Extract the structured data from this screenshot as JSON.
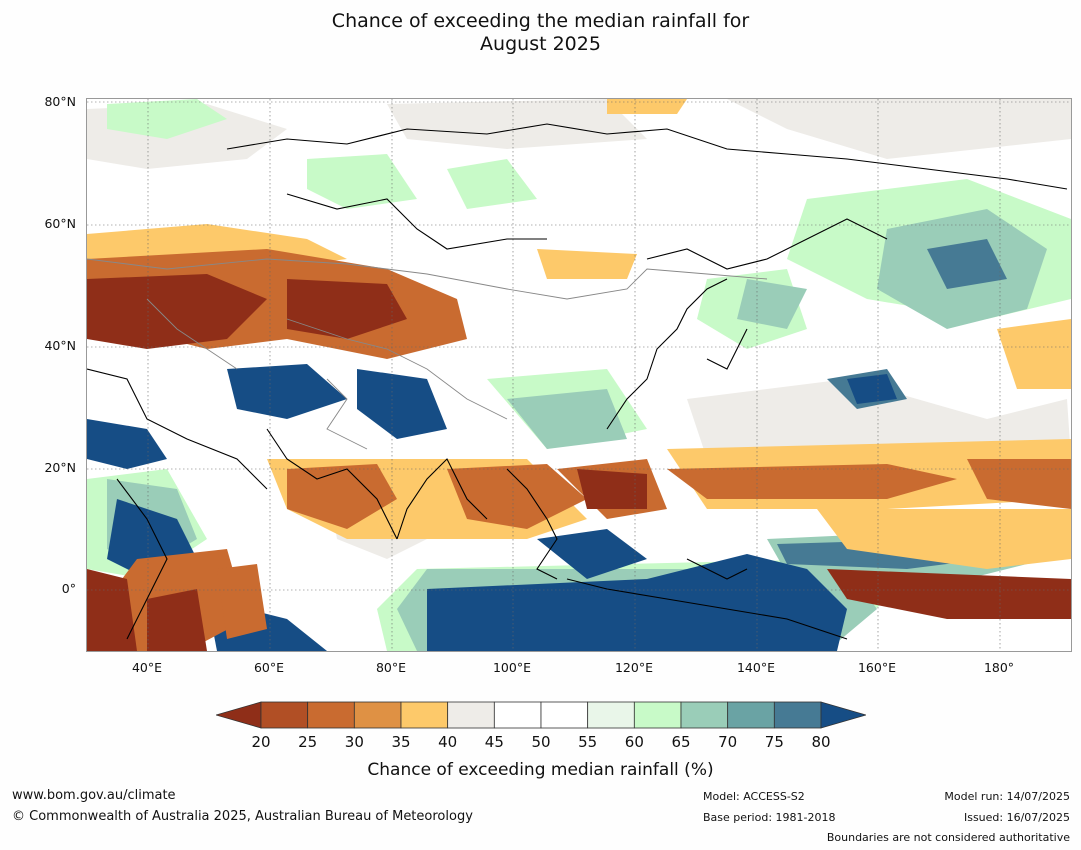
{
  "title_line1": "Chance of exceeding the median rainfall for",
  "title_line2": "August 2025",
  "map": {
    "lat_ticks": [
      {
        "label": "80°N",
        "value": 80
      },
      {
        "label": "60°N",
        "value": 60
      },
      {
        "label": "40°N",
        "value": 40
      },
      {
        "label": "20°N",
        "value": 20
      },
      {
        "label": "0°",
        "value": 0
      }
    ],
    "lon_ticks": [
      {
        "label": "40°E",
        "value": 40
      },
      {
        "label": "60°E",
        "value": 60
      },
      {
        "label": "80°E",
        "value": 80
      },
      {
        "label": "100°E",
        "value": 100
      },
      {
        "label": "120°E",
        "value": 120
      },
      {
        "label": "140°E",
        "value": 140
      },
      {
        "label": "160°E",
        "value": 160
      },
      {
        "label": "180°",
        "value": 180
      }
    ],
    "extent": {
      "lon": [
        30,
        190
      ],
      "lat": [
        -10,
        80
      ]
    }
  },
  "colorbar": {
    "labels": [
      "20",
      "25",
      "30",
      "35",
      "40",
      "45",
      "50",
      "55",
      "60",
      "65",
      "70",
      "75",
      "80"
    ],
    "colors": [
      "#8f2e18",
      "#b14f25",
      "#c96b30",
      "#df9144",
      "#fdc96a",
      "#eeece8",
      "#ffffff",
      "#ffffff",
      "#e9f6e9",
      "#c8fac8",
      "#9acdb8",
      "#6aa3a4",
      "#467a94",
      "#164d85"
    ],
    "title": "Chance of exceeding median rainfall (%)"
  },
  "footer": {
    "website": "www.bom.gov.au/climate",
    "copyright": "© Commonwealth of Australia 2025, Australian Bureau of Meteorology",
    "model": "Model: ACCESS-S2",
    "base_period": "Base period: 1981-2018",
    "model_run": "Model run: 14/07/2025",
    "issued": "Issued: 16/07/2025",
    "disclaimer": "Boundaries are not considered authoritative"
  }
}
